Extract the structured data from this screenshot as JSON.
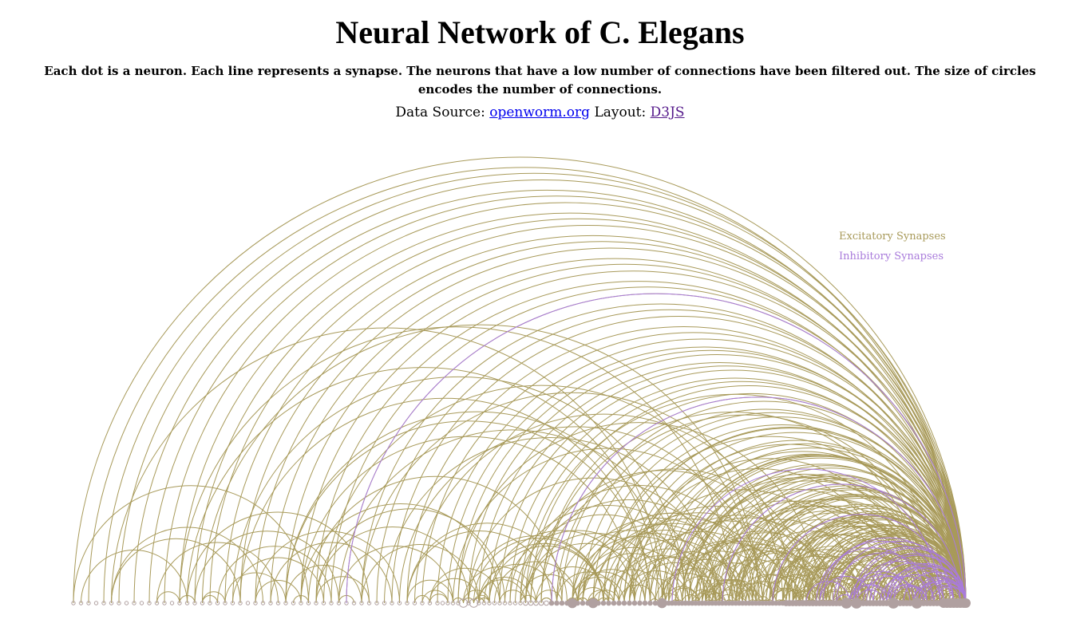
{
  "title": "Neural Network of C. Elegans",
  "subtitle": "Each dot is a neuron. Each line represents a synapse. The neurons that have a low number of connections have been filtered out. The size of circles encodes the number of connections.",
  "source": {
    "data_label": "Data Source:",
    "data_link": "openworm.org",
    "layout_label": "Layout:",
    "layout_link": "D3JS"
  },
  "legend": {
    "excitatory": "Excitatory Synapses",
    "inhibitory": "Inhibitory Synapses"
  },
  "colors": {
    "excitatory": "#a89a5a",
    "inhibitory": "#a97bdb",
    "node": "#b0a0a0"
  },
  "diagram": {
    "type": "arc-diagram",
    "nodes_shape": "circle",
    "edges_shape": "semicircle-arc"
  }
}
